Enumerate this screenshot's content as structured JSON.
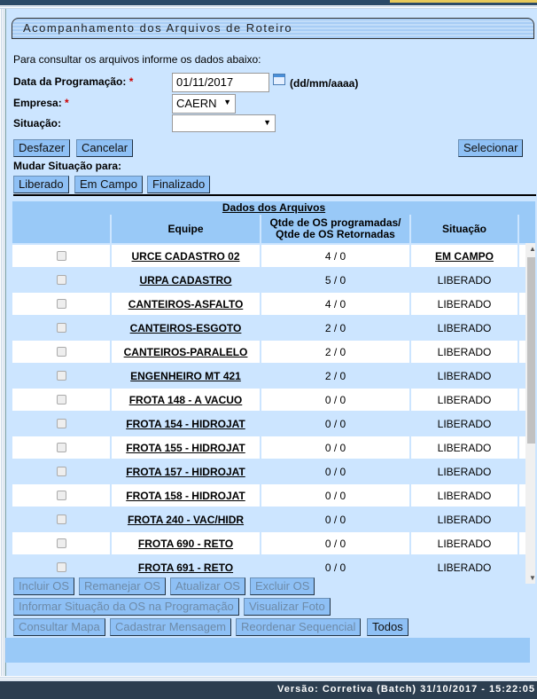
{
  "title": "Acompanhamento dos Arquivos de Roteiro",
  "intro": "Para consultar os arquivos informe os dados abaixo:",
  "form": {
    "data_label": "Data da Programação:",
    "data_value": "01/11/2017",
    "data_hint": "(dd/mm/aaaa)",
    "empresa_label": "Empresa:",
    "empresa_value": "CAERN",
    "situacao_label": "Situação:",
    "situacao_value": "",
    "required_mark": "*"
  },
  "buttons": {
    "desfazer": "Desfazer",
    "cancelar": "Cancelar",
    "selecionar": "Selecionar",
    "mudar_label": "Mudar Situação para:",
    "liberado": "Liberado",
    "em_campo": "Em Campo",
    "finalizado": "Finalizado",
    "incluir": "Incluir OS",
    "remanejar": "Remanejar OS",
    "atualizar": "Atualizar OS",
    "excluir": "Excluir OS",
    "informar": "Informar Situação da OS na Programação",
    "foto": "Visualizar Foto",
    "mapa": "Consultar Mapa",
    "mensagem": "Cadastrar Mensagem",
    "reordenar": "Reordenar Sequencial",
    "todos": "Todos"
  },
  "table": {
    "title": "Dados dos Arquivos",
    "headers": [
      "",
      "Equipe",
      "Qtde de OS programadas/ Qtde de OS Retornadas",
      "Situação"
    ],
    "rows": [
      {
        "equipe": "URCE CADASTRO 02",
        "qtde": "4 / 0",
        "situacao": "EM CAMPO"
      },
      {
        "equipe": "URPA CADASTRO",
        "qtde": "5 / 0",
        "situacao": "LIBERADO"
      },
      {
        "equipe": "CANTEIROS-ASFALTO",
        "qtde": "4 / 0",
        "situacao": "LIBERADO"
      },
      {
        "equipe": "CANTEIROS-ESGOTO",
        "qtde": "2 / 0",
        "situacao": "LIBERADO"
      },
      {
        "equipe": "CANTEIROS-PARALELO",
        "qtde": "2 / 0",
        "situacao": "LIBERADO"
      },
      {
        "equipe": "ENGENHEIRO MT 421",
        "qtde": "2 / 0",
        "situacao": "LIBERADO"
      },
      {
        "equipe": "FROTA 148 - A VACUO",
        "qtde": "0 / 0",
        "situacao": "LIBERADO"
      },
      {
        "equipe": "FROTA 154 - HIDROJAT",
        "qtde": "0 / 0",
        "situacao": "LIBERADO"
      },
      {
        "equipe": "FROTA 155 - HIDROJAT",
        "qtde": "0 / 0",
        "situacao": "LIBERADO"
      },
      {
        "equipe": "FROTA 157 - HIDROJAT",
        "qtde": "0 / 0",
        "situacao": "LIBERADO"
      },
      {
        "equipe": "FROTA 158 - HIDROJAT",
        "qtde": "0 / 0",
        "situacao": "LIBERADO"
      },
      {
        "equipe": "FROTA 240 - VAC/HIDR",
        "qtde": "0 / 0",
        "situacao": "LIBERADO"
      },
      {
        "equipe": "FROTA 690 - RETO",
        "qtde": "0 / 0",
        "situacao": "LIBERADO"
      },
      {
        "equipe": "FROTA 691 - RETO",
        "qtde": "0 / 0",
        "situacao": "LIBERADO"
      }
    ]
  },
  "footer": "Versão: Corretiva (Batch) 31/10/2017 - 15:22:05"
}
